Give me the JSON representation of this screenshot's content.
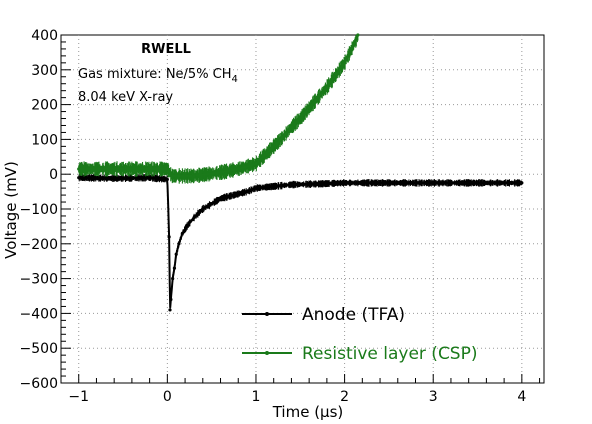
{
  "chart_data": {
    "type": "line",
    "title": "RWELL",
    "annotations": [
      "Gas mixture: Ne/5% CH",
      "4",
      "8.04 keV X-ray"
    ],
    "xlabel": "Time (µs)",
    "ylabel": "Voltage (mV)",
    "xlim": [
      -1.2,
      4.25
    ],
    "ylim": [
      -600,
      400
    ],
    "x_ticks": [
      -1,
      0,
      1,
      2,
      3,
      4
    ],
    "x_tick_labels": [
      "−1",
      "0",
      "1",
      "2",
      "3",
      "4"
    ],
    "y_ticks": [
      400,
      300,
      200,
      100,
      0,
      -100,
      -200,
      -300,
      -400,
      -500,
      -600
    ],
    "y_tick_labels": [
      "400",
      "300",
      "200",
      "100",
      "0",
      "−100",
      "−200",
      "−300",
      "−400",
      "−500",
      "−600"
    ],
    "grid": true,
    "legend_position": "bottom-right",
    "series": [
      {
        "name": "Anode (TFA)",
        "color": "#000000",
        "noise_band": 22,
        "x": [
          -1.0,
          -0.6,
          -0.2,
          0.0,
          0.02,
          0.03,
          0.04,
          0.06,
          0.08,
          0.1,
          0.13,
          0.17,
          0.22,
          0.3,
          0.4,
          0.5,
          0.6,
          0.75,
          0.9,
          1.0,
          1.2,
          1.4,
          1.7,
          2.0,
          2.5,
          3.0,
          3.5,
          4.0
        ],
        "y": [
          -10,
          -12,
          -10,
          -15,
          -180,
          -390,
          -360,
          -300,
          -270,
          -230,
          -200,
          -170,
          -150,
          -125,
          -100,
          -85,
          -70,
          -60,
          -50,
          -40,
          -35,
          -30,
          -28,
          -25,
          -25,
          -25,
          -25,
          -25
        ]
      },
      {
        "name": "Resistive layer (CSP)",
        "color": "#1a7a1a",
        "noise_band": 45,
        "x": [
          -1.0,
          -0.5,
          0.0,
          0.05,
          0.3,
          0.6,
          0.8,
          1.0,
          1.1,
          1.2,
          1.3,
          1.4,
          1.5,
          1.6,
          1.7,
          1.8,
          1.9,
          2.0,
          2.1,
          2.15
        ],
        "y": [
          15,
          15,
          15,
          -5,
          -5,
          5,
          15,
          30,
          55,
          80,
          105,
          135,
          160,
          190,
          220,
          250,
          285,
          320,
          370,
          400
        ]
      }
    ]
  }
}
